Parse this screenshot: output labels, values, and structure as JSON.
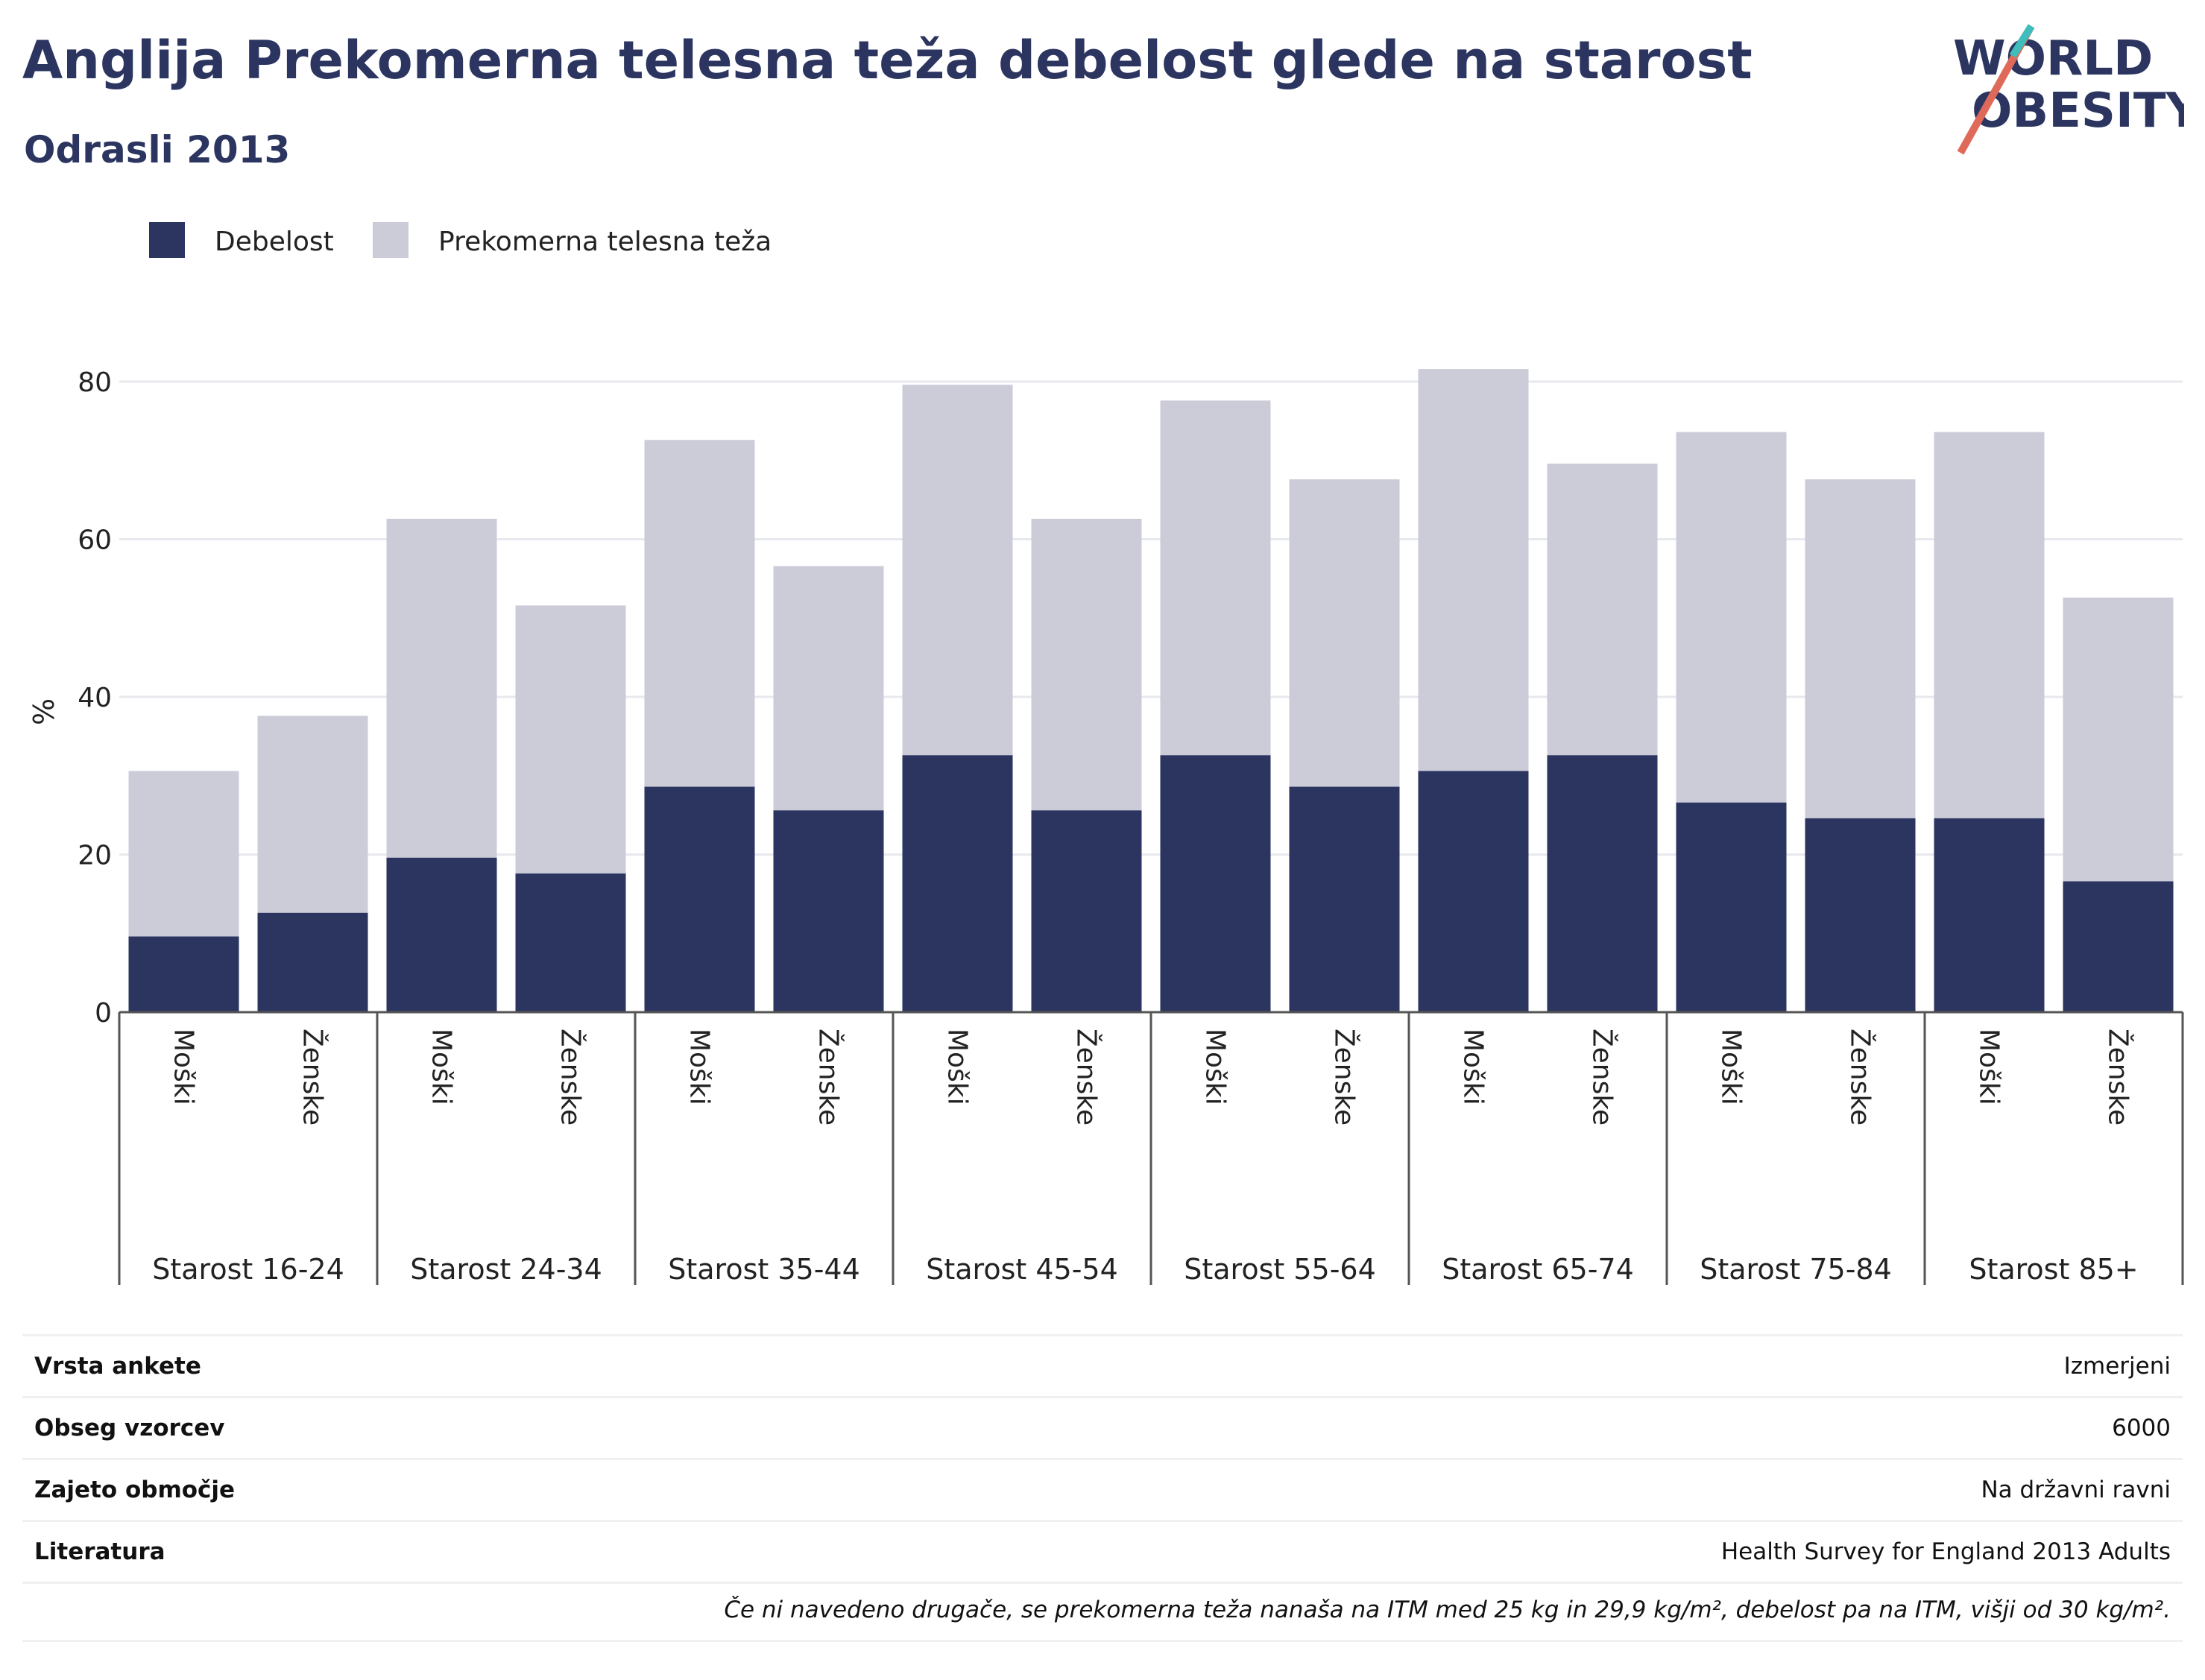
{
  "header": {
    "title": "Anglija  Prekomerna telesna teža debelost glede na starost",
    "subtitle": "Odrasli 2013"
  },
  "logo": {
    "line1": "WORLD",
    "line2": "OBESITY"
  },
  "colors": {
    "obesity": "#2b3560",
    "overweight": "#cbccd8",
    "text": "#2b3560",
    "grid": "#e8e9ee"
  },
  "chart_data": {
    "type": "bar",
    "stacked": true,
    "ylabel": "%",
    "ylim": [
      0,
      90
    ],
    "yticks": [
      0,
      20,
      40,
      60,
      80
    ],
    "grid": true,
    "legend_position": "top-left",
    "legend": [
      "Debelost",
      "Prekomerna telesna teža"
    ],
    "groups": [
      "Starost 16-24",
      "Starost 24-34",
      "Starost 35-44",
      "Starost 45-54",
      "Starost 55-64",
      "Starost 65-74",
      "Starost 75-84",
      "Starost 85+"
    ],
    "categories": [
      "Moški",
      "Ženske",
      "Moški",
      "Ženske",
      "Moški",
      "Ženske",
      "Moški",
      "Ženske",
      "Moški",
      "Ženske",
      "Moški",
      "Ženske",
      "Moški",
      "Ženske",
      "Moški",
      "Ženske"
    ],
    "series": [
      {
        "name": "Debelost",
        "values": [
          9.6,
          12.6,
          19.6,
          17.6,
          28.6,
          25.6,
          32.6,
          25.6,
          32.6,
          28.6,
          30.6,
          32.6,
          26.6,
          24.6,
          24.6,
          16.6
        ]
      },
      {
        "name": "Prekomerna telesna teža",
        "values": [
          21,
          25,
          43,
          34,
          44,
          31,
          47,
          37,
          45,
          39,
          51,
          37,
          47,
          43,
          49,
          36
        ]
      }
    ]
  },
  "meta": [
    {
      "key": "Vrsta ankete",
      "value": "Izmerjeni"
    },
    {
      "key": "Obseg vzorcev",
      "value": "6000"
    },
    {
      "key": "Zajeto območje",
      "value": "Na državni ravni"
    },
    {
      "key": "Literatura",
      "value": "Health Survey for England 2013 Adults"
    }
  ],
  "note": "Če ni navedeno drugače, se prekomerna teža nanaša na ITM med 25 kg in 29,9 kg/m², debelost pa na ITM, višji od 30 kg/m²."
}
